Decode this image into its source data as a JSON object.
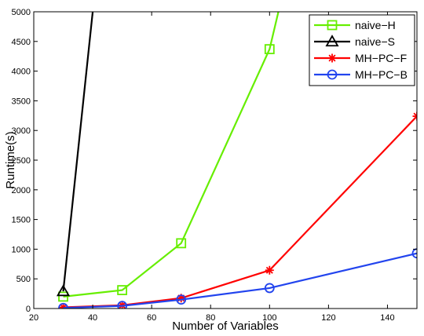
{
  "chart_data": {
    "type": "line",
    "xlabel": "Number of Variables",
    "ylabel": "Runtime(s)",
    "xlim": [
      20,
      150
    ],
    "ylim": [
      0,
      5000
    ],
    "xticks": [
      20,
      40,
      60,
      80,
      100,
      120,
      140
    ],
    "yticks": [
      0,
      500,
      1000,
      1500,
      2000,
      2500,
      3000,
      3500,
      4000,
      4500,
      5000
    ],
    "grid": false,
    "legend_position": "top-right",
    "series": [
      {
        "name": "naive−H",
        "color": "#66ee00",
        "marker": "square",
        "x": [
          30,
          50,
          70,
          100,
          103
        ],
        "y": [
          200,
          310,
          1100,
          4370,
          5000
        ]
      },
      {
        "name": "naive−S",
        "color": "#000000",
        "marker": "triangle",
        "x": [
          30,
          40
        ],
        "y": [
          290,
          5000
        ]
      },
      {
        "name": "MH−PC−F",
        "color": "#ff0000",
        "marker": "star",
        "x": [
          30,
          50,
          70,
          100,
          150
        ],
        "y": [
          20,
          55,
          175,
          645,
          3240
        ]
      },
      {
        "name": "MH−PC−B",
        "color": "#2244ee",
        "marker": "circle",
        "x": [
          30,
          50,
          70,
          100,
          150
        ],
        "y": [
          10,
          45,
          150,
          345,
          930
        ]
      }
    ]
  }
}
